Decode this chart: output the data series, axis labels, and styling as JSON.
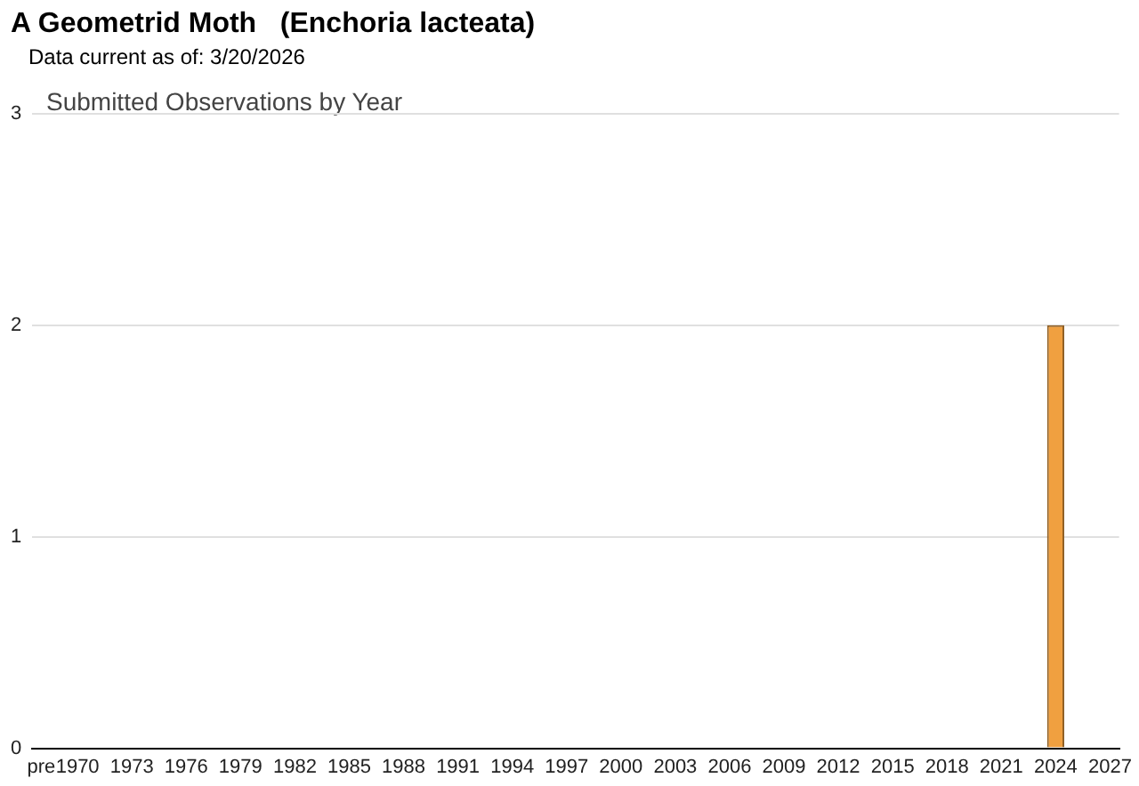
{
  "chart_data": {
    "type": "bar",
    "title": "A Geometrid Moth   (Enchoria lacteata)",
    "subtitle": "Data current as of: 3/20/2026",
    "annotations": [
      "Submitted Observations by Year"
    ],
    "categories": [
      "pre",
      null,
      "1970",
      null,
      null,
      "1973",
      null,
      null,
      "1976",
      null,
      null,
      "1979",
      null,
      null,
      "1982",
      null,
      null,
      "1985",
      null,
      null,
      "1988",
      null,
      null,
      "1991",
      null,
      null,
      "1994",
      null,
      null,
      "1997",
      null,
      null,
      "2000",
      null,
      null,
      "2003",
      null,
      null,
      "2006",
      null,
      null,
      "2009",
      null,
      null,
      "2012",
      null,
      null,
      "2015",
      null,
      null,
      "2018",
      null,
      null,
      "2021",
      null,
      null,
      "2024",
      null,
      null,
      "2027"
    ],
    "values": [
      0,
      0,
      0,
      0,
      0,
      0,
      0,
      0,
      0,
      0,
      0,
      0,
      0,
      0,
      0,
      0,
      0,
      0,
      0,
      0,
      0,
      0,
      0,
      0,
      0,
      0,
      0,
      0,
      0,
      0,
      0,
      0,
      0,
      0,
      0,
      0,
      0,
      0,
      0,
      0,
      0,
      0,
      0,
      0,
      0,
      0,
      0,
      0,
      0,
      0,
      0,
      0,
      0,
      0,
      0,
      0,
      2,
      0,
      0,
      0
    ],
    "color": "#f0a040",
    "ylim": [
      0,
      3
    ],
    "yticks": [
      0,
      1,
      2,
      3
    ],
    "grid": "y",
    "legend": false
  }
}
